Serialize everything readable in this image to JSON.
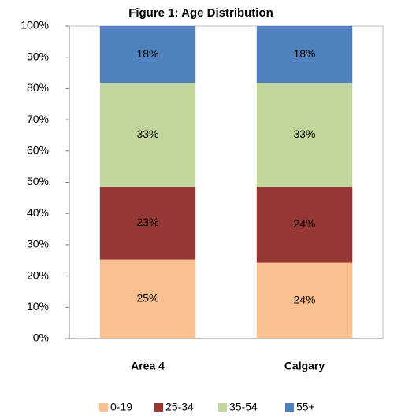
{
  "chart_data": {
    "type": "stacked_bar",
    "title": "Figure 1: Age Distribution",
    "categories": [
      "Area 4",
      "Calgary"
    ],
    "series": [
      {
        "name": "0-19",
        "color": "#fac090",
        "values": [
          25.3,
          24.3
        ],
        "value_labels": [
          "25%",
          "24%"
        ]
      },
      {
        "name": "25-34",
        "color": "#953735",
        "values": [
          23.2,
          24.2
        ],
        "value_labels": [
          "23%",
          "24%"
        ]
      },
      {
        "name": "35-54",
        "color": "#c3d69b",
        "values": [
          33.3,
          33.3
        ],
        "value_labels": [
          "33%",
          "33%"
        ]
      },
      {
        "name": "55+",
        "color": "#4f81bd",
        "values": [
          18.2,
          18.2
        ],
        "value_labels": [
          "18%",
          "18%"
        ]
      }
    ],
    "ylim": [
      0,
      100
    ],
    "yticks": [
      {
        "value": 0,
        "label": "0%"
      },
      {
        "value": 10,
        "label": "10%"
      },
      {
        "value": 20,
        "label": "20%"
      },
      {
        "value": 30,
        "label": "30%"
      },
      {
        "value": 40,
        "label": "40%"
      },
      {
        "value": 50,
        "label": "50%"
      },
      {
        "value": 60,
        "label": "60%"
      },
      {
        "value": 70,
        "label": "70%"
      },
      {
        "value": 80,
        "label": "80%"
      },
      {
        "value": 90,
        "label": "90%"
      },
      {
        "value": 100,
        "label": "100%"
      }
    ],
    "legend": "bottom"
  }
}
